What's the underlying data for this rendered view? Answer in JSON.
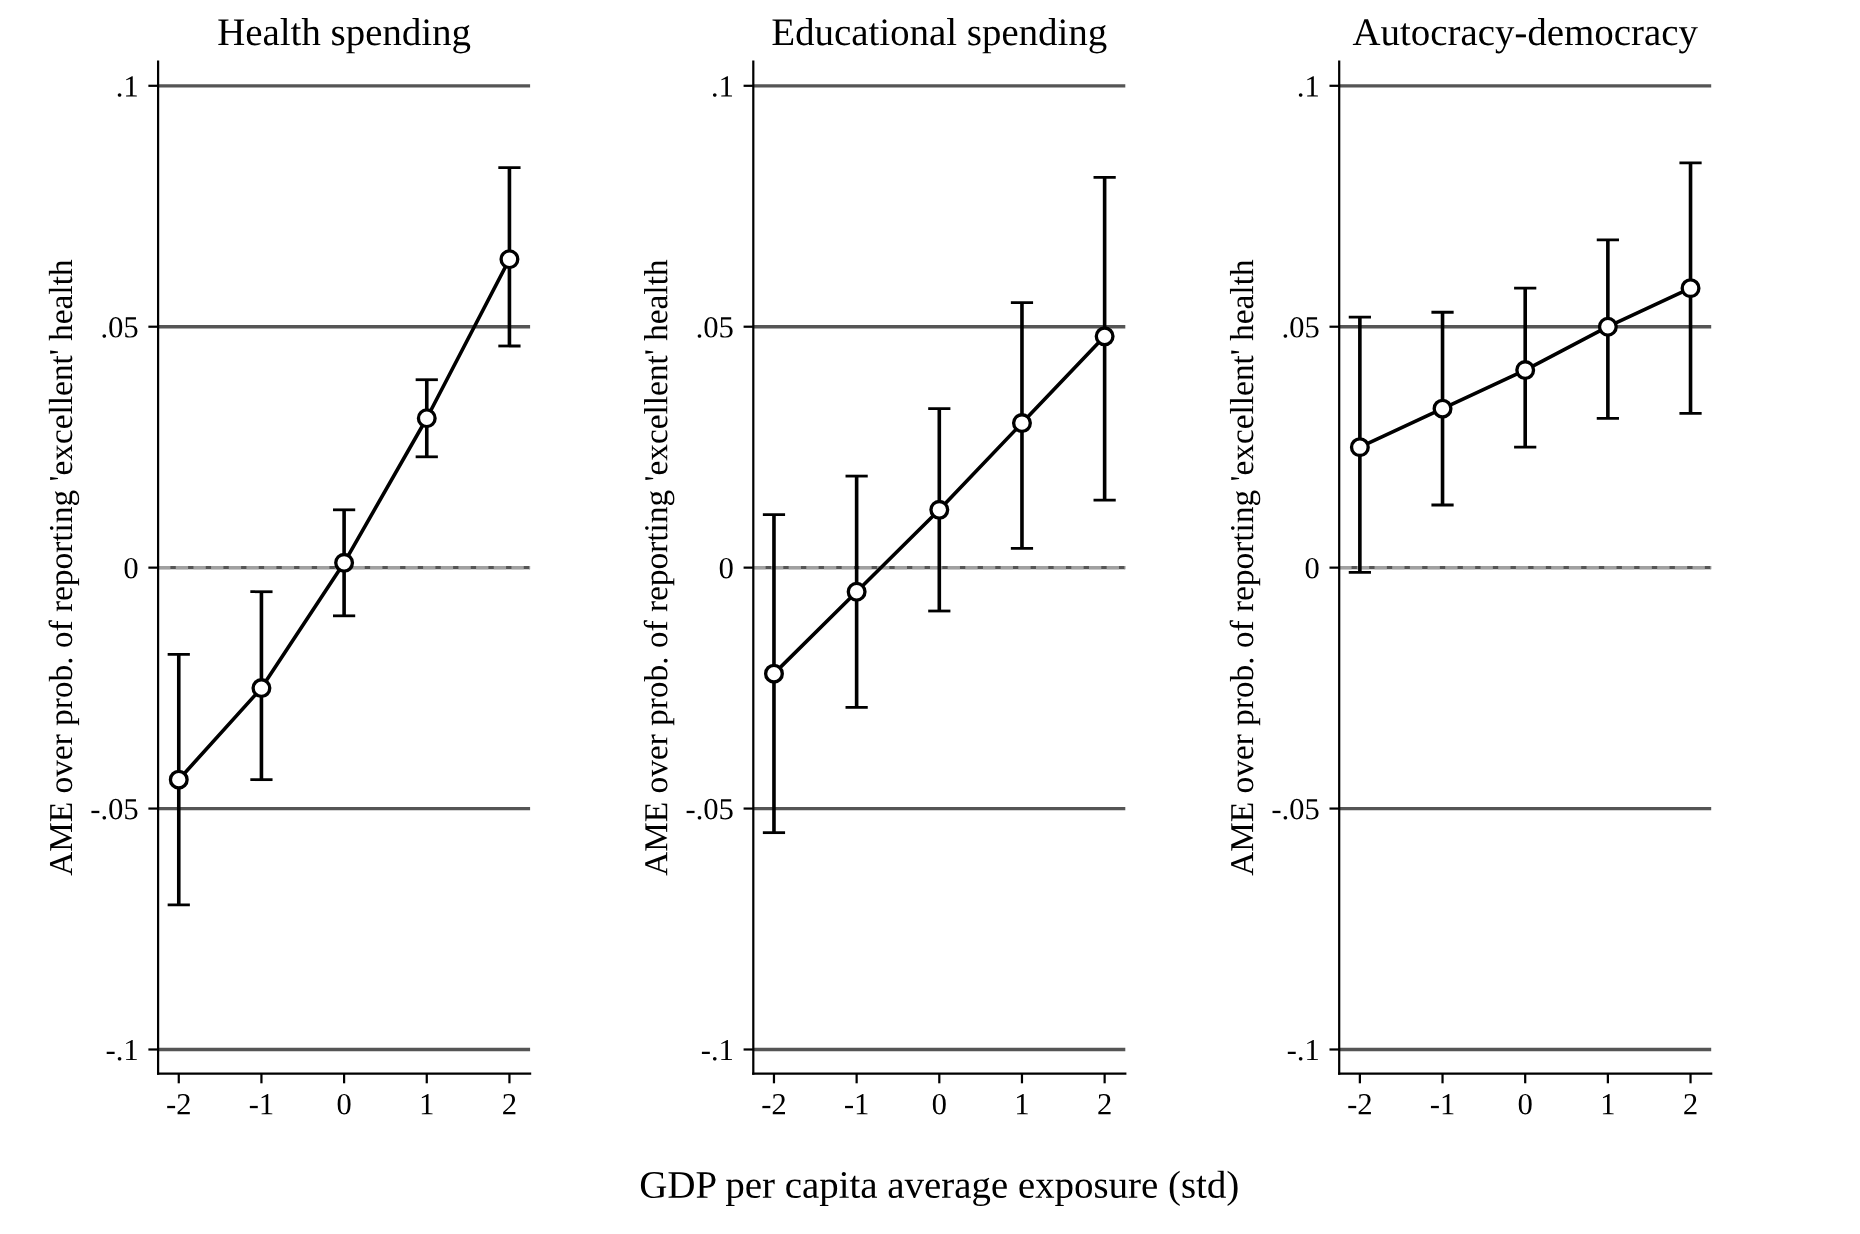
{
  "chart_data": [
    {
      "type": "line",
      "title": "Health spending",
      "ylabel": "AME over prob. of reporting 'excellent' health",
      "x": [
        -2,
        -1,
        0,
        1,
        2
      ],
      "color": "#000000",
      "marker": "circle",
      "line_style": "solid",
      "grid": "y",
      "values": [
        -0.044,
        -0.025,
        0.001,
        0.031,
        0.064
      ],
      "errors": [
        [
          -0.07,
          -0.018
        ],
        [
          -0.044,
          -0.005
        ],
        [
          -0.01,
          0.012
        ],
        [
          0.023,
          0.039
        ],
        [
          0.046,
          0.083
        ]
      ],
      "xlim": [
        -2.25,
        2.25
      ],
      "xticks": [
        -2,
        -1,
        0,
        1,
        2
      ],
      "ylim": [
        -0.105,
        0.105
      ],
      "yticks": [
        {
          "value": -0.1,
          "label": "-.1"
        },
        {
          "value": -0.05,
          "label": "-.05"
        },
        {
          "value": 0,
          "label": "0"
        },
        {
          "value": 0.05,
          "label": ".05"
        },
        {
          "value": 0.1,
          "label": ".1"
        }
      ],
      "ref_lines": [
        {
          "axis": "y",
          "value": 0,
          "color": "#a0a0a0",
          "line_style": "dashed"
        }
      ]
    },
    {
      "type": "line",
      "title": "Educational spending",
      "ylabel": "AME over prob. of reporting 'excellent' health",
      "xlabel": "GDP per capita average exposure (std)",
      "x": [
        -2,
        -1,
        0,
        1,
        2
      ],
      "color": "#000000",
      "marker": "circle",
      "line_style": "solid",
      "grid": "y",
      "values": [
        -0.022,
        -0.005,
        0.012,
        0.03,
        0.048
      ],
      "errors": [
        [
          -0.055,
          0.011
        ],
        [
          -0.029,
          0.019
        ],
        [
          -0.009,
          0.033
        ],
        [
          0.004,
          0.055
        ],
        [
          0.014,
          0.081
        ]
      ],
      "xlim": [
        -2.25,
        2.25
      ],
      "xticks": [
        -2,
        -1,
        0,
        1,
        2
      ],
      "ylim": [
        -0.105,
        0.105
      ],
      "yticks": [
        {
          "value": -0.1,
          "label": "-.1"
        },
        {
          "value": -0.05,
          "label": "-.05"
        },
        {
          "value": 0,
          "label": "0"
        },
        {
          "value": 0.05,
          "label": ".05"
        },
        {
          "value": 0.1,
          "label": ".1"
        }
      ],
      "ref_lines": [
        {
          "axis": "y",
          "value": 0,
          "color": "#a0a0a0",
          "line_style": "dashed"
        }
      ]
    },
    {
      "type": "line",
      "title": "Autocracy-democracy",
      "ylabel": "AME over prob. of reporting 'excellent' health",
      "x": [
        -2,
        -1,
        0,
        1,
        2
      ],
      "color": "#000000",
      "marker": "circle",
      "line_style": "solid",
      "grid": "y",
      "values": [
        0.025,
        0.033,
        0.041,
        0.05,
        0.058
      ],
      "errors": [
        [
          -0.001,
          0.052
        ],
        [
          0.013,
          0.053
        ],
        [
          0.025,
          0.058
        ],
        [
          0.031,
          0.068
        ],
        [
          0.032,
          0.084
        ]
      ],
      "xlim": [
        -2.25,
        2.25
      ],
      "xticks": [
        -2,
        -1,
        0,
        1,
        2
      ],
      "ylim": [
        -0.105,
        0.105
      ],
      "yticks": [
        {
          "value": -0.1,
          "label": "-.1"
        },
        {
          "value": -0.05,
          "label": "-.05"
        },
        {
          "value": 0,
          "label": "0"
        },
        {
          "value": 0.05,
          "label": ".05"
        },
        {
          "value": 0.1,
          "label": ".1"
        }
      ],
      "ref_lines": [
        {
          "axis": "y",
          "value": 0,
          "color": "#a0a0a0",
          "line_style": "dashed"
        }
      ]
    }
  ]
}
